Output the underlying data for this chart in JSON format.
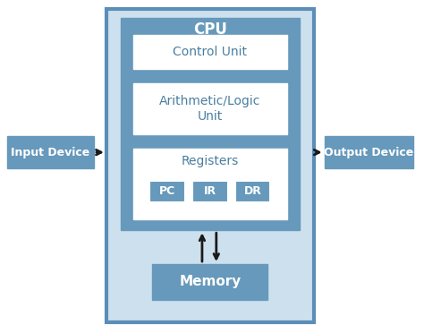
{
  "bg_color": "#ffffff",
  "outer_bg_fill": "#cde0ee",
  "outer_border_color": "#5b8db8",
  "cpu_fill": "#6699bb",
  "white_fill": "#ffffff",
  "blue_fill": "#6699bb",
  "text_white": "#ffffff",
  "text_blue": "#4a7ea0",
  "arrow_color": "#1a1a1a",
  "cpu_label": "CPU",
  "control_label": "Control Unit",
  "alu_label": "Arithmetic/Logic\nUnit",
  "registers_label": "Registers",
  "reg_items": [
    "PC",
    "IR",
    "DR"
  ],
  "memory_label": "Memory",
  "input_label": "Input Device",
  "output_label": "Output Device",
  "fig_w": 4.74,
  "fig_h": 3.72,
  "dpi": 100
}
